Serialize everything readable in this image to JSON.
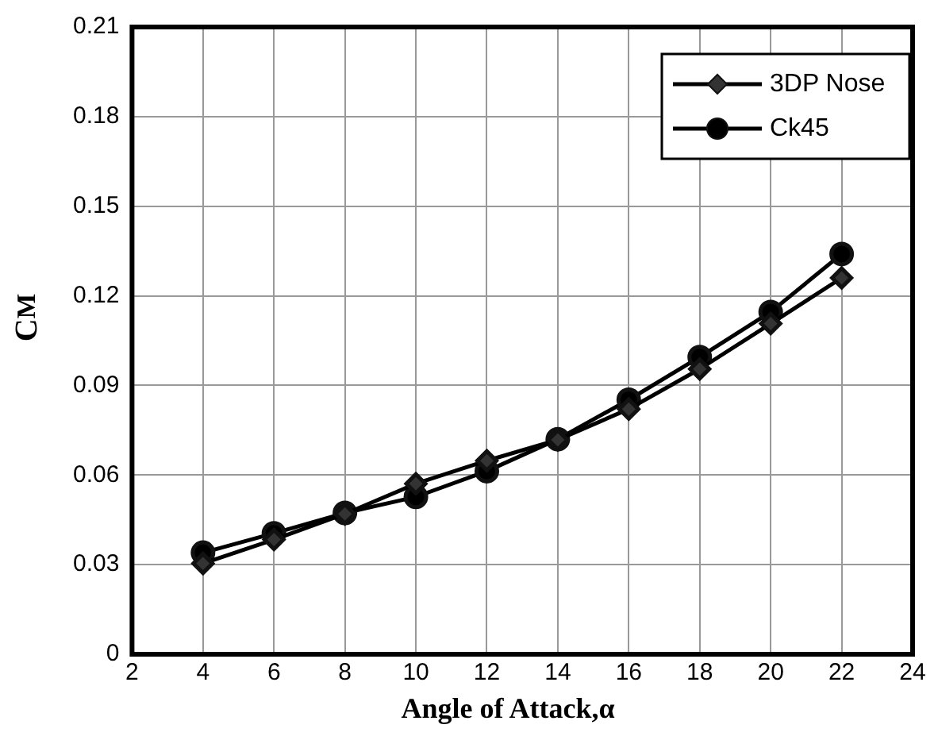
{
  "chart_data": {
    "type": "line",
    "xlabel": "Angle of Attack,α",
    "ylabel": "C$_{M}$",
    "x": [
      4,
      6,
      8,
      10,
      12,
      14,
      16,
      18,
      20,
      22
    ],
    "series": [
      {
        "name": "3DP Nose",
        "color": "#000000",
        "marker": "diamond",
        "values": [
          0.0304,
          0.0384,
          0.047,
          0.0571,
          0.0648,
          0.0718,
          0.0821,
          0.0955,
          0.1107,
          0.126
        ]
      },
      {
        "name": "Ck45",
        "color": "#000000",
        "marker": "circle",
        "values": [
          0.034,
          0.0405,
          0.0473,
          0.0527,
          0.0613,
          0.072,
          0.0852,
          0.0995,
          0.1146,
          0.134
        ]
      }
    ],
    "xlim": [
      2,
      24
    ],
    "xticks": [
      2,
      4,
      6,
      8,
      10,
      12,
      14,
      16,
      18,
      20,
      22,
      24
    ],
    "ylim": [
      0,
      0.21
    ],
    "yticks": [
      0,
      0.03,
      0.06,
      0.09,
      0.12,
      0.15,
      0.18,
      0.21
    ],
    "grid": true,
    "legend": "top right",
    "line_style": "solid"
  }
}
